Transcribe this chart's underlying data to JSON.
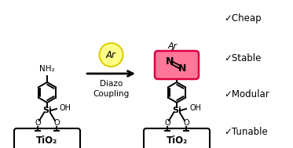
{
  "bg_color": "#ffffff",
  "lw": 1.4,
  "check_items": [
    "✓Cheap",
    "✓Stable",
    "✓Modular",
    "✓Tunable"
  ],
  "ar_circle_face": "#ffff88",
  "ar_circle_edge": "#ddcc00",
  "diazo_box_face": "#ff7799",
  "diazo_box_edge": "#dd0044",
  "tio2_box_face": "#ffffff",
  "tio2_box_edge": "#000000"
}
